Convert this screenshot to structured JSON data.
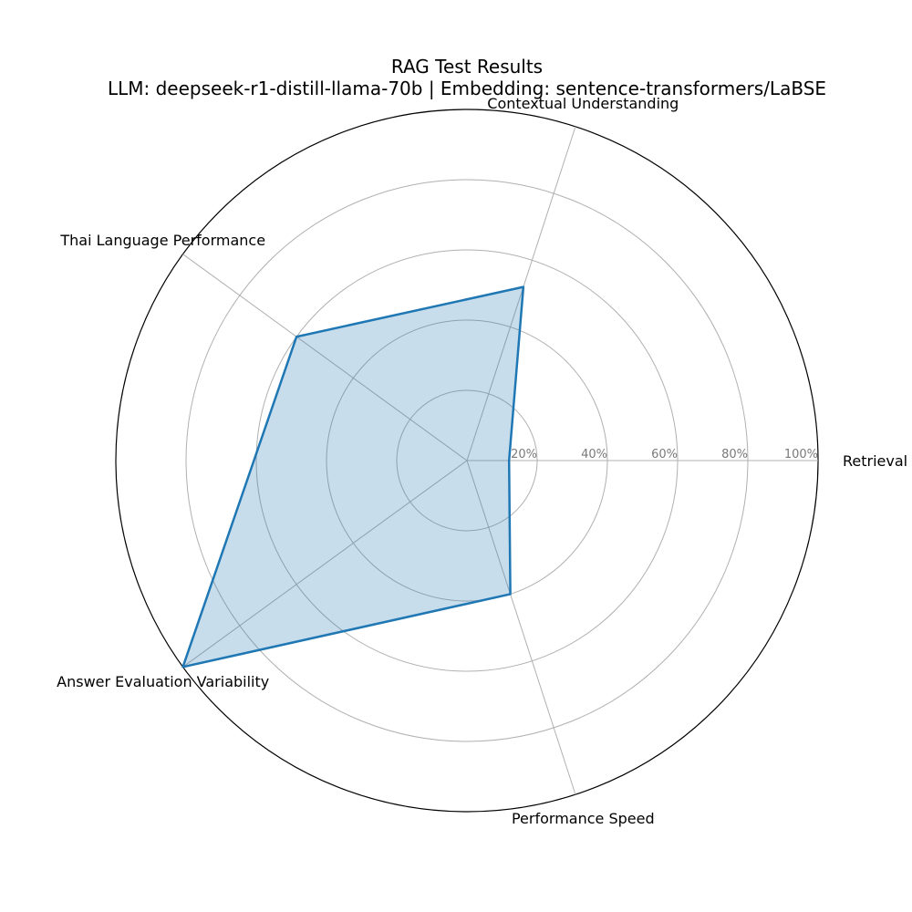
{
  "chart_data": {
    "type": "radar",
    "title": "RAG Test Results",
    "subtitle": "LLM: deepseek-r1-distill-llama-70b | Embedding: sentence-transformers/LaBSE",
    "categories": [
      "Retrieval Accuracy",
      "Contextual Understanding",
      "Thai Language Performance",
      "Answer Evaluation Variability",
      "Performance Speed"
    ],
    "series": [
      {
        "values": [
          12,
          52,
          60,
          100,
          40
        ]
      }
    ],
    "rlim": [
      0,
      100
    ],
    "rticks": [
      20,
      40,
      60,
      80,
      100
    ],
    "rtick_labels": [
      "20%",
      "40%",
      "60%",
      "80%",
      "100%"
    ],
    "grid": true,
    "colors": {
      "line": "#1f77b4",
      "fill": "#1f77b4",
      "grid": "#b0b0b0",
      "frame": "#000000"
    }
  }
}
